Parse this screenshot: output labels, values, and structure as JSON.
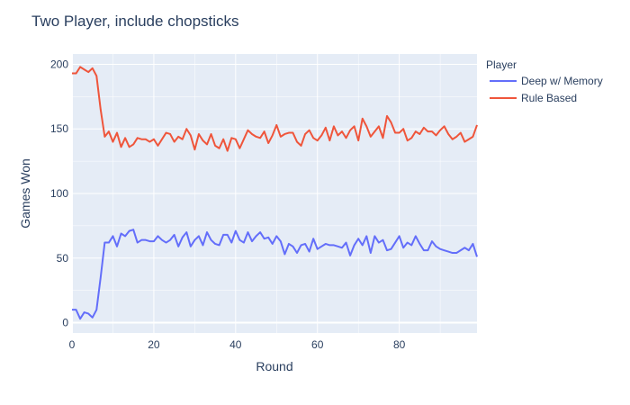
{
  "chart_data": {
    "type": "line",
    "title": "Two Player, include chopsticks",
    "xlabel": "Round",
    "ylabel": "Games Won",
    "xlim": [
      0,
      99
    ],
    "ylim": [
      -8,
      208
    ],
    "x_ticks": [
      0,
      20,
      40,
      60,
      80
    ],
    "y_ticks": [
      0,
      50,
      100,
      150,
      200
    ],
    "grid": true,
    "legend_title": "Player",
    "legend_position": "top-right",
    "x": [
      0,
      1,
      2,
      3,
      4,
      5,
      6,
      7,
      8,
      9,
      10,
      11,
      12,
      13,
      14,
      15,
      16,
      17,
      18,
      19,
      20,
      21,
      22,
      23,
      24,
      25,
      26,
      27,
      28,
      29,
      30,
      31,
      32,
      33,
      34,
      35,
      36,
      37,
      38,
      39,
      40,
      41,
      42,
      43,
      44,
      45,
      46,
      47,
      48,
      49,
      50,
      51,
      52,
      53,
      54,
      55,
      56,
      57,
      58,
      59,
      60,
      61,
      62,
      63,
      64,
      65,
      66,
      67,
      68,
      69,
      70,
      71,
      72,
      73,
      74,
      75,
      76,
      77,
      78,
      79,
      80,
      81,
      82,
      83,
      84,
      85,
      86,
      87,
      88,
      89,
      90,
      91,
      92,
      93,
      94,
      95,
      96,
      97,
      98,
      99
    ],
    "series": [
      {
        "name": "Deep w/ Memory",
        "color": "#636efa",
        "values": [
          10,
          10,
          3,
          8,
          7,
          4,
          10,
          35,
          62,
          62,
          67,
          59,
          69,
          67,
          71,
          72,
          62,
          64,
          64,
          63,
          63,
          67,
          64,
          62,
          64,
          68,
          59,
          66,
          70,
          59,
          64,
          67,
          60,
          70,
          64,
          61,
          60,
          68,
          68,
          62,
          71,
          64,
          62,
          70,
          63,
          67,
          70,
          65,
          66,
          61,
          67,
          63,
          53,
          61,
          59,
          54,
          60,
          61,
          55,
          65,
          57,
          59,
          61,
          60,
          60,
          59,
          58,
          62,
          52,
          60,
          65,
          60,
          67,
          54,
          67,
          62,
          64,
          56,
          57,
          62,
          67,
          58,
          62,
          60,
          67,
          61,
          56,
          56,
          63,
          59,
          57,
          56,
          55,
          54,
          54,
          56,
          58,
          56,
          61,
          51
        ]
      },
      {
        "name": "Rule Based",
        "color": "#ef553b",
        "values": [
          193,
          193,
          198,
          196,
          194,
          197,
          191,
          165,
          144,
          148,
          140,
          147,
          136,
          143,
          136,
          138,
          143,
          142,
          142,
          140,
          142,
          137,
          142,
          147,
          146,
          140,
          144,
          142,
          150,
          145,
          134,
          146,
          141,
          138,
          146,
          137,
          135,
          142,
          133,
          143,
          142,
          135,
          142,
          149,
          146,
          144,
          143,
          148,
          139,
          145,
          153,
          144,
          146,
          147,
          147,
          140,
          137,
          146,
          149,
          143,
          141,
          145,
          151,
          141,
          152,
          145,
          148,
          143,
          149,
          152,
          141,
          158,
          152,
          144,
          148,
          152,
          143,
          160,
          155,
          147,
          147,
          150,
          141,
          143,
          148,
          146,
          151,
          148,
          148,
          145,
          149,
          152,
          146,
          142,
          144,
          147,
          140,
          142,
          144,
          153
        ]
      }
    ]
  }
}
